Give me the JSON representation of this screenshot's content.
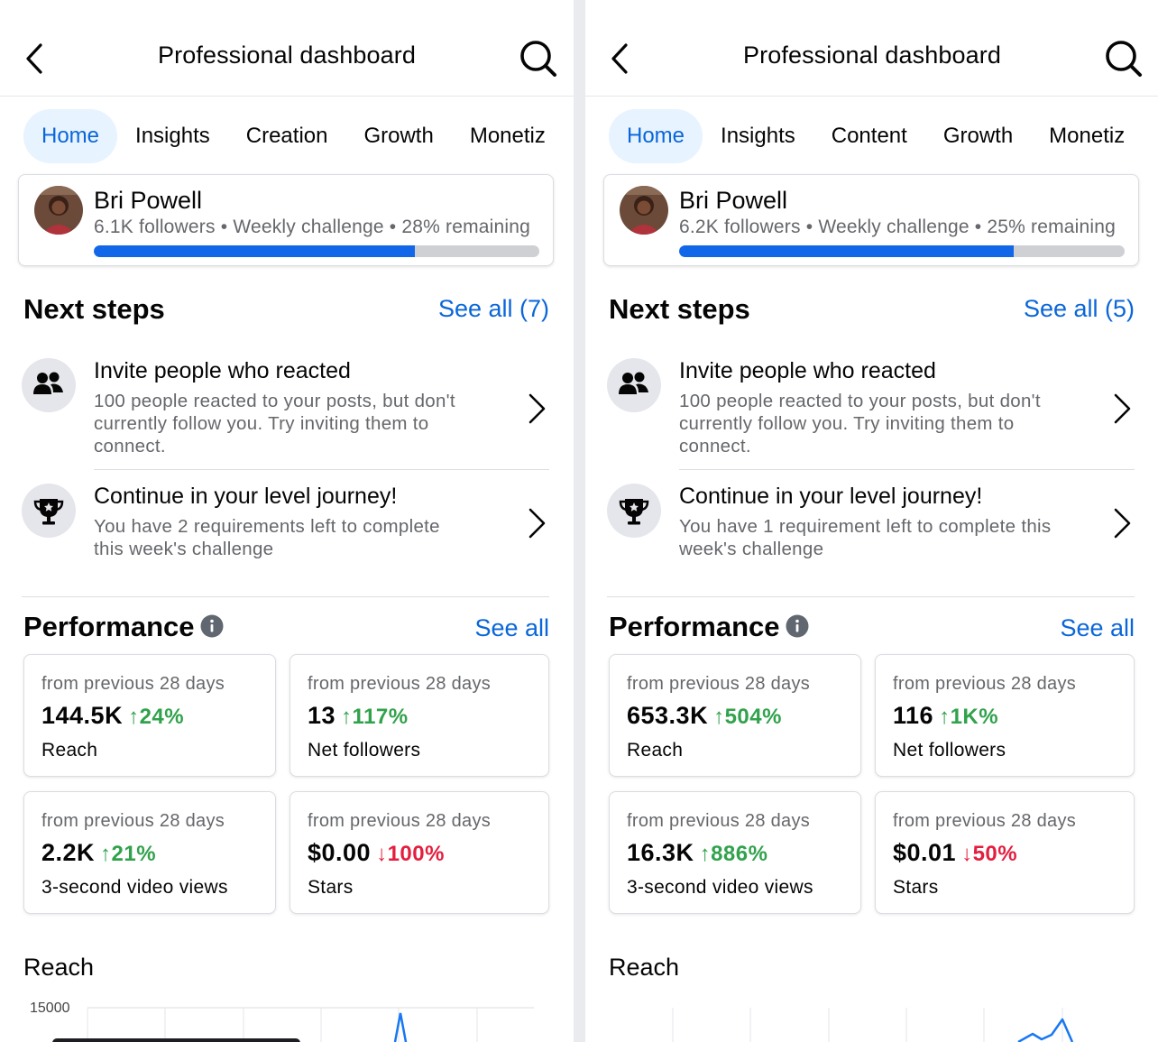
{
  "panels": [
    {
      "header": {
        "title": "Professional dashboard"
      },
      "tabs": [
        {
          "label": "Home",
          "active": true
        },
        {
          "label": "Insights",
          "active": false
        },
        {
          "label": "Creation",
          "active": false
        },
        {
          "label": "Growth",
          "active": false
        },
        {
          "label": "Monetiz",
          "active": false
        }
      ],
      "profile": {
        "name": "Bri Powell",
        "meta": "6.1K followers • Weekly challenge • 28% remaining",
        "challenge_progress": 0.72
      },
      "next_steps": {
        "title": "Next steps",
        "see_all": "See all (7)",
        "items": [
          {
            "icon": "people-icon",
            "title": "Invite people who reacted",
            "desc_lines": [
              "100 people reacted to your posts, but don't",
              "currently follow you. Try inviting them to",
              "connect."
            ]
          },
          {
            "icon": "trophy-icon",
            "title": "Continue in your level journey!",
            "desc_lines": [
              "You have 2 requirements left to complete",
              "this week's challenge"
            ]
          }
        ]
      },
      "performance": {
        "title": "Performance",
        "see_all": "See all",
        "metrics": [
          {
            "period": "from previous 28 days",
            "value": "144.5K",
            "change": "↑24%",
            "direction": "up",
            "label": "Reach"
          },
          {
            "period": "from previous 28 days",
            "value": "13",
            "change": "↑117%",
            "direction": "up",
            "label": "Net followers"
          },
          {
            "period": "from previous 28 days",
            "value": "2.2K",
            "change": "↑21%",
            "direction": "up",
            "label": "3-second video views"
          },
          {
            "period": "from previous 28 days",
            "value": "$0.00",
            "change": "↓100%",
            "direction": "down",
            "label": "Stars"
          }
        ]
      },
      "reach_chart": {
        "title": "Reach",
        "y_tick": "15000"
      }
    },
    {
      "header": {
        "title": "Professional dashboard"
      },
      "tabs": [
        {
          "label": "Home",
          "active": true
        },
        {
          "label": "Insights",
          "active": false
        },
        {
          "label": "Content",
          "active": false
        },
        {
          "label": "Growth",
          "active": false
        },
        {
          "label": "Monetiz",
          "active": false
        }
      ],
      "profile": {
        "name": "Bri Powell",
        "meta": "6.2K followers • Weekly challenge • 25% remaining",
        "challenge_progress": 0.75
      },
      "next_steps": {
        "title": "Next steps",
        "see_all": "See all (5)",
        "items": [
          {
            "icon": "people-icon",
            "title": "Invite people who reacted",
            "desc_lines": [
              "100 people reacted to your posts, but don't",
              "currently follow you. Try inviting them to",
              "connect."
            ]
          },
          {
            "icon": "trophy-icon",
            "title": "Continue in your level journey!",
            "desc_lines": [
              "You have 1 requirement left to complete this",
              "week's challenge"
            ]
          }
        ]
      },
      "performance": {
        "title": "Performance",
        "see_all": "See all",
        "metrics": [
          {
            "period": "from previous 28 days",
            "value": "653.3K",
            "change": "↑504%",
            "direction": "up",
            "label": "Reach"
          },
          {
            "period": "from previous 28 days",
            "value": "116",
            "change": "↑1K%",
            "direction": "up",
            "label": "Net followers"
          },
          {
            "period": "from previous 28 days",
            "value": "16.3K",
            "change": "↑886%",
            "direction": "up",
            "label": "3-second video views"
          },
          {
            "period": "from previous 28 days",
            "value": "$0.01",
            "change": "↓50%",
            "direction": "down",
            "label": "Stars"
          }
        ]
      },
      "reach_chart": {
        "title": "Reach",
        "y_tick": ""
      }
    }
  ]
}
